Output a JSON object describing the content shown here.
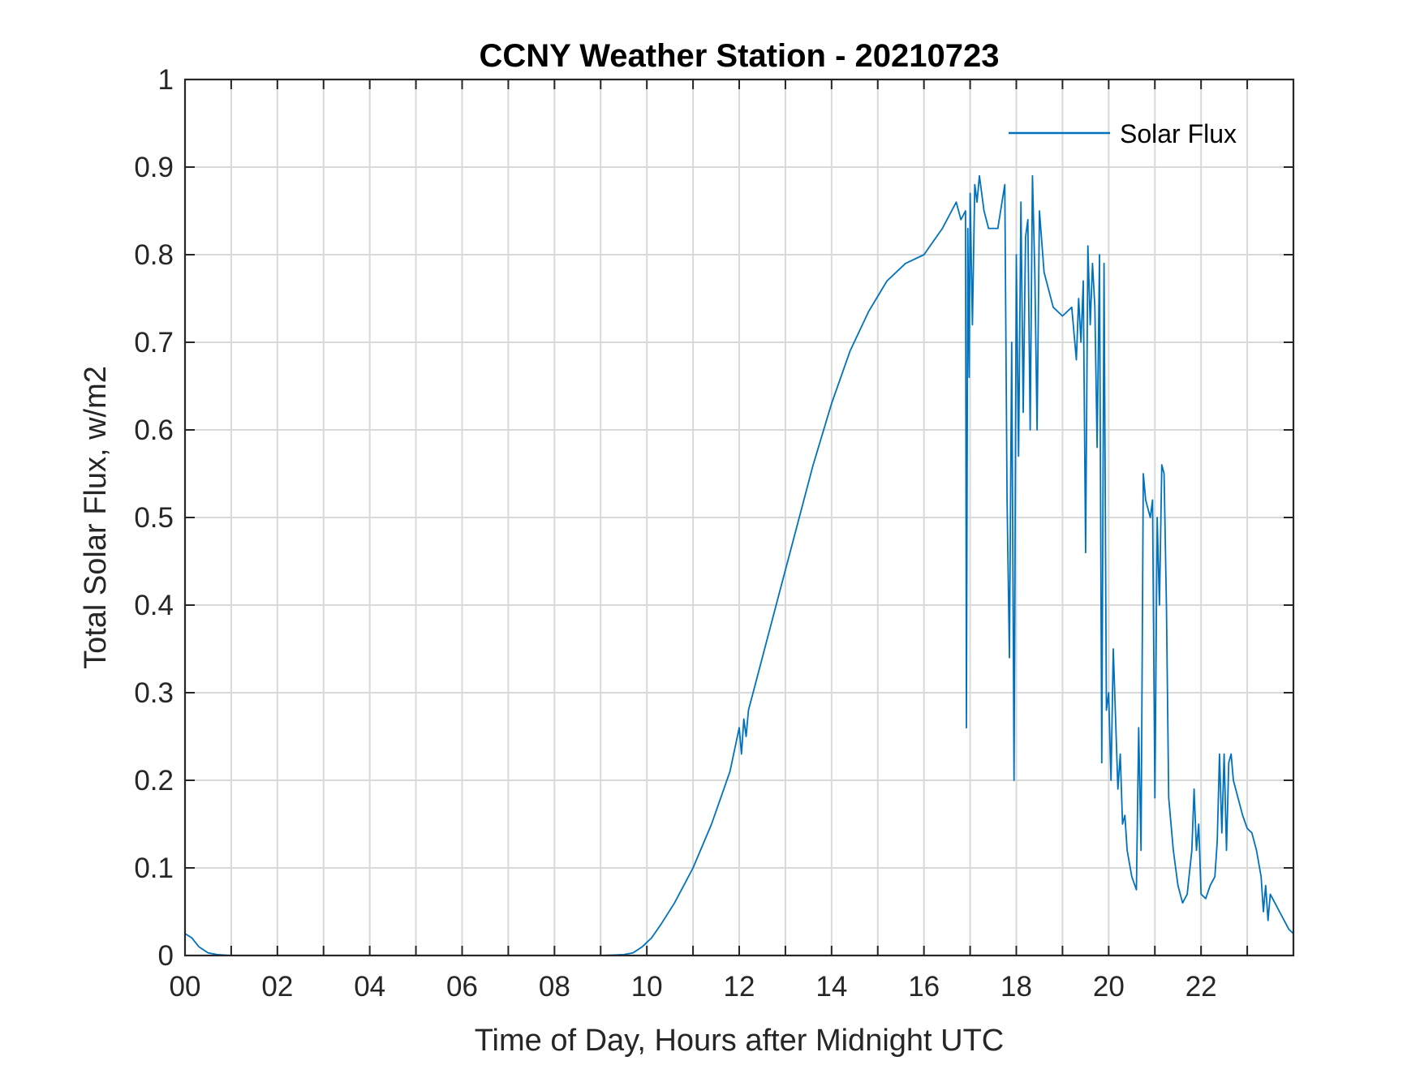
{
  "chart_data": {
    "type": "line",
    "title": "CCNY Weather Station - 20210723",
    "xlabel": "Time of Day, Hours after Midnight UTC",
    "ylabel": "Total Solar Flux, w/m2",
    "xlim": [
      0,
      24
    ],
    "ylim": [
      0,
      1
    ],
    "xticks": [
      0,
      2,
      4,
      6,
      8,
      10,
      12,
      14,
      16,
      18,
      20,
      22
    ],
    "xtick_labels": [
      "00",
      "02",
      "04",
      "06",
      "08",
      "10",
      "12",
      "14",
      "16",
      "18",
      "20",
      "22"
    ],
    "yticks": [
      0,
      0.1,
      0.2,
      0.3,
      0.4,
      0.5,
      0.6,
      0.7,
      0.8,
      0.9,
      1
    ],
    "ytick_labels": [
      "0",
      "0.1",
      "0.2",
      "0.3",
      "0.4",
      "0.5",
      "0.6",
      "0.7",
      "0.8",
      "0.9",
      "1"
    ],
    "grid": true,
    "legend_position": "top-right",
    "line_color": "#0072BD",
    "series": [
      {
        "name": "Solar Flux",
        "x": [
          0,
          0.15,
          0.3,
          0.5,
          0.7,
          1.0,
          2.0,
          4.0,
          6.0,
          8.0,
          9.0,
          9.5,
          9.7,
          9.9,
          10.1,
          10.3,
          10.6,
          11.0,
          11.4,
          11.8,
          12.0,
          12.05,
          12.1,
          12.15,
          12.2,
          12.4,
          12.8,
          13.2,
          13.6,
          14.0,
          14.4,
          14.8,
          15.2,
          15.6,
          16.0,
          16.4,
          16.6,
          16.7,
          16.8,
          16.9,
          16.92,
          16.95,
          16.98,
          17.0,
          17.05,
          17.1,
          17.15,
          17.2,
          17.3,
          17.4,
          17.6,
          17.75,
          17.8,
          17.85,
          17.9,
          17.95,
          18.0,
          18.05,
          18.1,
          18.15,
          18.2,
          18.25,
          18.3,
          18.35,
          18.4,
          18.45,
          18.5,
          18.6,
          18.8,
          19.0,
          19.2,
          19.3,
          19.35,
          19.4,
          19.45,
          19.5,
          19.55,
          19.6,
          19.65,
          19.7,
          19.75,
          19.8,
          19.85,
          19.9,
          19.95,
          20.0,
          20.05,
          20.1,
          20.2,
          20.25,
          20.3,
          20.35,
          20.4,
          20.5,
          20.6,
          20.65,
          20.7,
          20.75,
          20.8,
          20.9,
          20.95,
          21.0,
          21.05,
          21.1,
          21.15,
          21.2,
          21.25,
          21.3,
          21.4,
          21.5,
          21.6,
          21.7,
          21.8,
          21.85,
          21.9,
          21.95,
          22.0,
          22.1,
          22.2,
          22.3,
          22.35,
          22.4,
          22.45,
          22.5,
          22.55,
          22.6,
          22.65,
          22.7,
          22.8,
          22.9,
          23.0,
          23.1,
          23.2,
          23.3,
          23.35,
          23.4,
          23.45,
          23.5,
          23.6,
          23.7,
          23.8,
          23.9,
          24.0
        ],
        "values": [
          0.025,
          0.02,
          0.01,
          0.003,
          0.001,
          0,
          0,
          0,
          0,
          0,
          0,
          0.001,
          0.003,
          0.01,
          0.02,
          0.035,
          0.06,
          0.1,
          0.15,
          0.21,
          0.26,
          0.23,
          0.27,
          0.25,
          0.28,
          0.32,
          0.4,
          0.48,
          0.56,
          0.63,
          0.69,
          0.735,
          0.77,
          0.79,
          0.8,
          0.83,
          0.85,
          0.86,
          0.84,
          0.85,
          0.26,
          0.83,
          0.66,
          0.87,
          0.72,
          0.88,
          0.86,
          0.89,
          0.85,
          0.83,
          0.83,
          0.88,
          0.52,
          0.34,
          0.7,
          0.2,
          0.8,
          0.57,
          0.86,
          0.62,
          0.82,
          0.84,
          0.6,
          0.89,
          0.78,
          0.6,
          0.85,
          0.78,
          0.74,
          0.73,
          0.74,
          0.68,
          0.75,
          0.7,
          0.77,
          0.46,
          0.81,
          0.72,
          0.79,
          0.74,
          0.58,
          0.8,
          0.22,
          0.79,
          0.28,
          0.3,
          0.2,
          0.35,
          0.19,
          0.23,
          0.15,
          0.16,
          0.12,
          0.09,
          0.075,
          0.26,
          0.12,
          0.55,
          0.52,
          0.5,
          0.52,
          0.18,
          0.5,
          0.4,
          0.56,
          0.55,
          0.4,
          0.18,
          0.12,
          0.08,
          0.06,
          0.07,
          0.12,
          0.19,
          0.12,
          0.15,
          0.07,
          0.065,
          0.08,
          0.09,
          0.13,
          0.23,
          0.14,
          0.23,
          0.12,
          0.22,
          0.23,
          0.2,
          0.18,
          0.16,
          0.145,
          0.14,
          0.12,
          0.09,
          0.05,
          0.08,
          0.04,
          0.07,
          0.06,
          0.05,
          0.04,
          0.03,
          0.025
        ]
      }
    ]
  }
}
